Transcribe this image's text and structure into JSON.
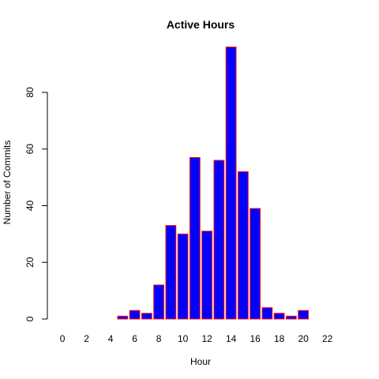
{
  "chart_data": {
    "type": "bar",
    "title": "Active Hours",
    "xlabel": "Hour",
    "ylabel": "Number of Commits",
    "categories": [
      "0",
      "1",
      "2",
      "3",
      "4",
      "5",
      "6",
      "7",
      "8",
      "9",
      "10",
      "11",
      "12",
      "13",
      "14",
      "15",
      "16",
      "17",
      "18",
      "19",
      "20",
      "21",
      "22",
      "23"
    ],
    "x_tick_labels": [
      "0",
      "2",
      "4",
      "6",
      "8",
      "10",
      "12",
      "14",
      "16",
      "18",
      "20",
      "22"
    ],
    "values": [
      0,
      0,
      0,
      0,
      0,
      1,
      3,
      2,
      12,
      33,
      30,
      57,
      31,
      56,
      96,
      52,
      39,
      4,
      2,
      1,
      3,
      0,
      0,
      0
    ],
    "ylim": [
      0,
      100
    ],
    "y_ticks": [
      0,
      20,
      40,
      60,
      80
    ],
    "grid": false,
    "bar_fill_color": "#0000FF",
    "bar_border_color": "#FF0000"
  }
}
